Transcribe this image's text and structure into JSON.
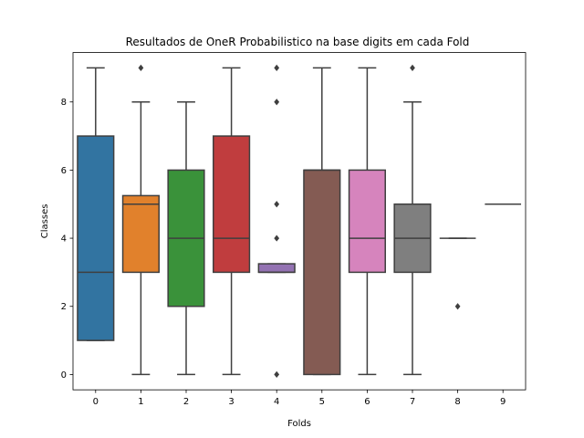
{
  "chart_data": {
    "type": "box",
    "title": "Resultados de OneR Probabilistico na base digits em cada Fold",
    "xlabel": "Folds",
    "ylabel": "Classes",
    "ylim": [
      -0.45,
      9.45
    ],
    "yticks": [
      0,
      2,
      4,
      6,
      8
    ],
    "grid": false,
    "categories": [
      "0",
      "1",
      "2",
      "3",
      "4",
      "5",
      "6",
      "7",
      "8",
      "9"
    ],
    "colors": [
      "#3274a1",
      "#e1812c",
      "#3a923a",
      "#c03d3e",
      "#9372b2",
      "#845b53",
      "#d684bd",
      "#7f7f7f",
      "#a9aa35",
      "#2e9fc4"
    ],
    "boxes": [
      {
        "min": 1,
        "q1": 1,
        "median": 3,
        "q3": 7,
        "max": 9,
        "outliers": []
      },
      {
        "min": 0,
        "q1": 3,
        "median": 5,
        "q3": 5.25,
        "max": 8,
        "outliers": [
          9
        ]
      },
      {
        "min": 0,
        "q1": 2,
        "median": 4,
        "q3": 6,
        "max": 8,
        "outliers": []
      },
      {
        "min": 0,
        "q1": 3,
        "median": 4,
        "q3": 7,
        "max": 9,
        "outliers": []
      },
      {
        "min": 3,
        "q1": 3,
        "median": 3,
        "q3": 3.25,
        "max": 3.25,
        "outliers": [
          0,
          4,
          5,
          8,
          9
        ]
      },
      {
        "min": 0,
        "q1": 0,
        "median": 6,
        "q3": 6,
        "max": 9,
        "outliers": []
      },
      {
        "min": 0,
        "q1": 3,
        "median": 4,
        "q3": 6,
        "max": 9,
        "outliers": []
      },
      {
        "min": 0,
        "q1": 3,
        "median": 4,
        "q3": 5,
        "max": 8,
        "outliers": [
          9
        ]
      },
      {
        "min": 4,
        "q1": 4,
        "median": 4,
        "q3": 4,
        "max": 4,
        "outliers": [
          2
        ]
      },
      {
        "min": 5,
        "q1": 5,
        "median": 5,
        "q3": 5,
        "max": 5,
        "outliers": []
      }
    ]
  }
}
